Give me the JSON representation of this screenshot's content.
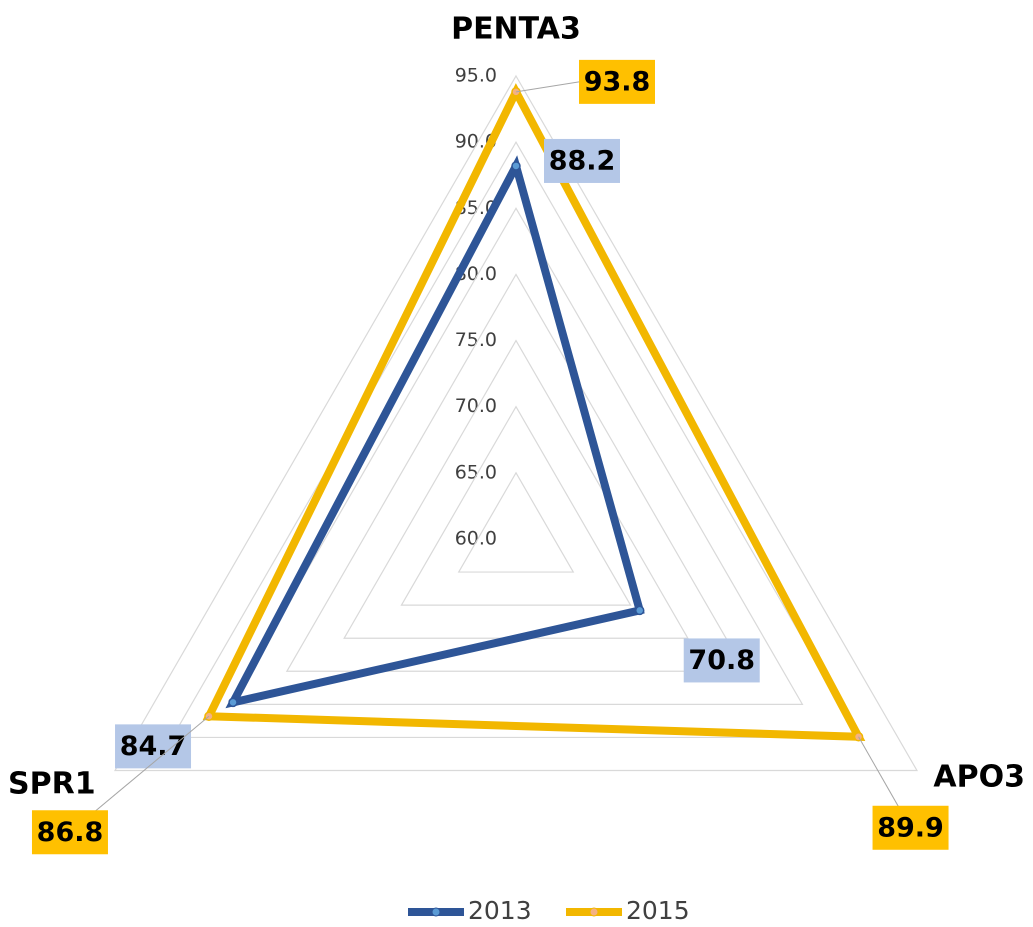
{
  "chart_data": {
    "type": "radar",
    "categories": [
      "PENTA3",
      "APO3",
      "SPR1"
    ],
    "series": [
      {
        "name": "2013",
        "color": "#2e5597",
        "label_color": "#b4c7e7",
        "values": [
          88.2,
          70.8,
          84.7
        ]
      },
      {
        "name": "2015",
        "color": "#f2b700",
        "label_color": "#ffc000",
        "values": [
          93.8,
          89.9,
          86.8
        ]
      }
    ],
    "ylim": [
      60,
      95
    ],
    "yticks": [
      {
        "value": 60,
        "label": "60.0"
      },
      {
        "value": 65,
        "label": "65.0"
      },
      {
        "value": 70,
        "label": "70.0"
      },
      {
        "value": 75,
        "label": "75.0"
      },
      {
        "value": 80,
        "label": "80.0"
      },
      {
        "value": 85,
        "label": "85.0"
      },
      {
        "value": 90,
        "label": "90.0"
      },
      {
        "value": 95,
        "label": "95.0"
      }
    ],
    "grid": true,
    "legend": "bottom"
  }
}
